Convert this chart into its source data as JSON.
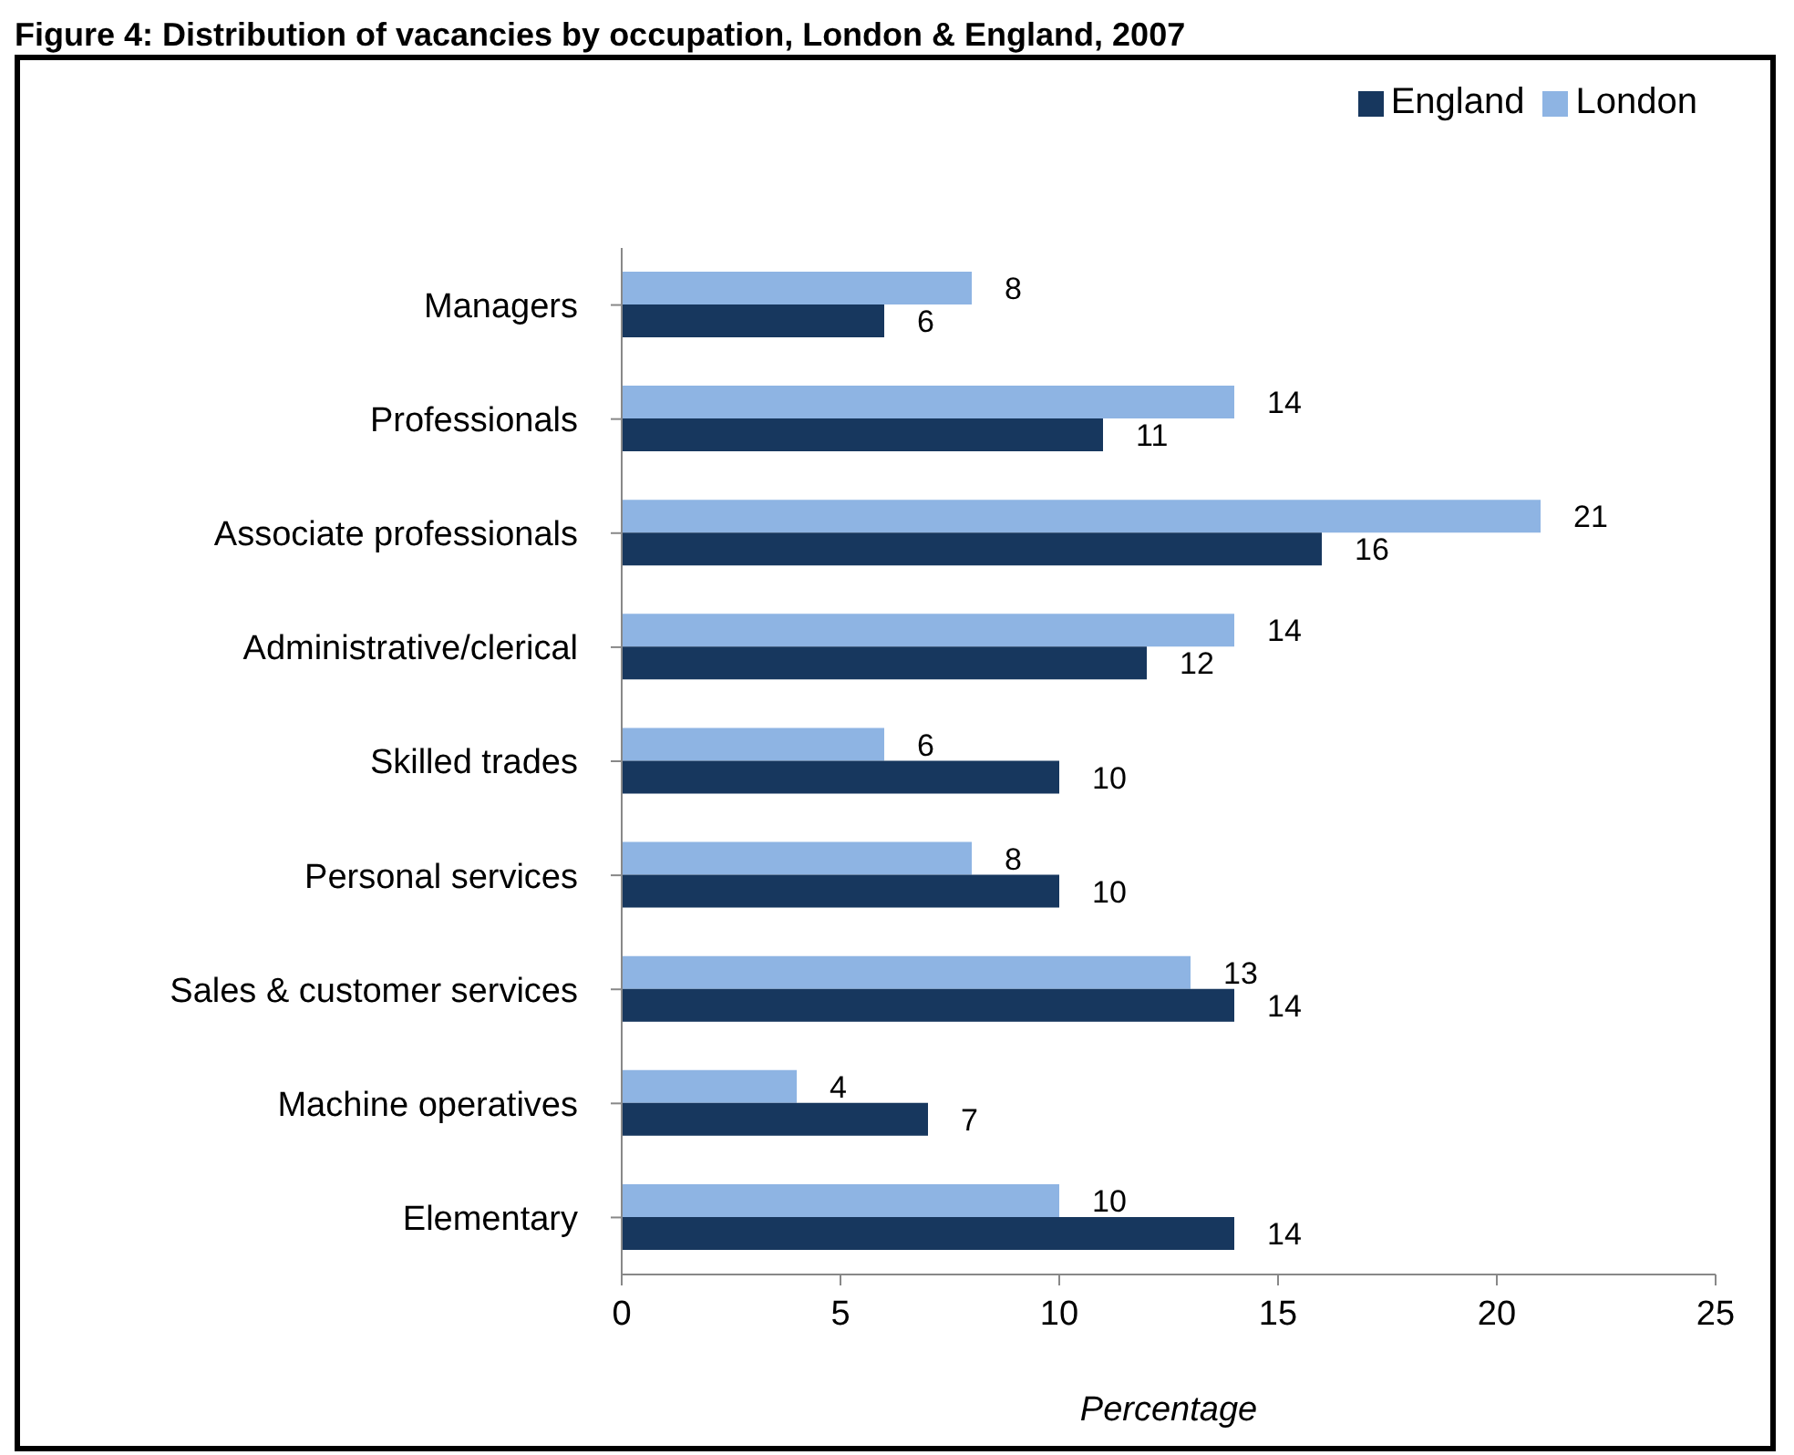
{
  "chart_data": {
    "type": "bar",
    "orientation": "horizontal",
    "title": "Figure 4: Distribution of vacancies by occupation, London & England, 2007",
    "xlabel": "Percentage",
    "categories": [
      "Managers",
      "Professionals",
      "Associate professionals",
      "Administrative/clerical",
      "Skilled trades",
      "Personal services",
      "Sales & customer services",
      "Machine operatives",
      "Elementary"
    ],
    "series": [
      {
        "name": "London",
        "color": "#8eb4e3",
        "values": [
          8,
          14,
          21,
          14,
          6,
          8,
          13,
          4,
          10
        ]
      },
      {
        "name": "England",
        "color": "#17375e",
        "values": [
          6,
          11,
          16,
          12,
          10,
          10,
          14,
          7,
          14
        ]
      }
    ],
    "xlim": [
      0,
      25
    ],
    "xticks": [
      0,
      5,
      10,
      15,
      20,
      25
    ],
    "data_labels": true,
    "grid": false,
    "legend": "top right"
  }
}
